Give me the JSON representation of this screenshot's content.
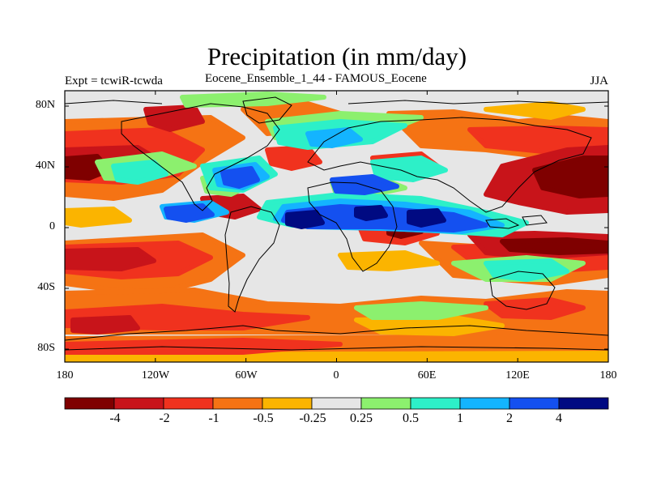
{
  "title": "Precipitation (in mm/day)",
  "left_label": "Expt = tcwiR-tcwda",
  "center_label": "Eocene_Ensemble_1_44 - FAMOUS_Eocene",
  "right_label": "JJA",
  "lat_ticks": [
    "80N",
    "40N",
    "0",
    "40S",
    "80S"
  ],
  "lon_ticks": [
    "180",
    "120W",
    "60W",
    "0",
    "60E",
    "120E",
    "180"
  ],
  "colorbar": {
    "labels": [
      "-4",
      "-2",
      "-1",
      "-0.5",
      "-0.25",
      "0.25",
      "0.5",
      "1",
      "2",
      "4"
    ],
    "colors": [
      "#7f0000",
      "#c8141a",
      "#f0321e",
      "#f57314",
      "#fbb400",
      "#e6e6e6",
      "#8cf06e",
      "#2df0c8",
      "#14b4ff",
      "#1450f0",
      "#000a82"
    ]
  },
  "map": {
    "background_color": "#e6e6e6",
    "colors": {
      "dark_red": "#7f0000",
      "red": "#c8141a",
      "bright_red": "#f0321e",
      "orange": "#f57314",
      "yellow_orange": "#fbb400",
      "green": "#8cf06e",
      "aqua": "#2df0c8",
      "sky": "#14b4ff",
      "blue": "#1450f0",
      "navy": "#000a82"
    }
  }
}
